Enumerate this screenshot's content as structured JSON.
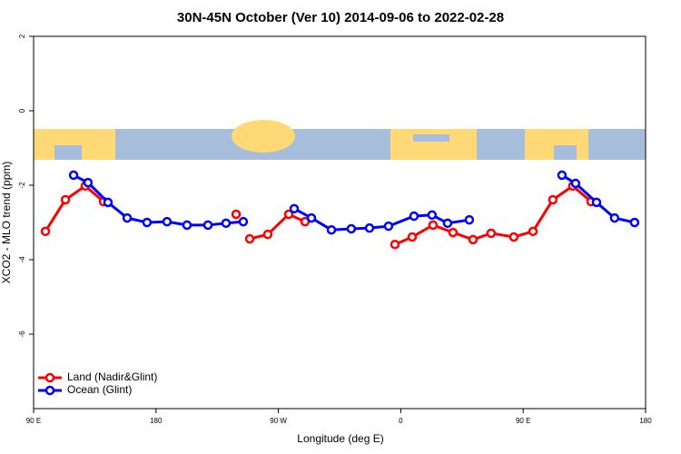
{
  "chart_data": {
    "type": "line",
    "title": "30N-45N October (Ver 10)   2014-09-06 to 2022-02-28",
    "x_label": "Longitude (deg E)",
    "y_label": "XCO2 - MLO trend (ppm)",
    "xlim": [
      90,
      540
    ],
    "ylim": [
      -8,
      2
    ],
    "xticks": [
      {
        "value": 90,
        "label": "90 E"
      },
      180,
      {
        "value": 270,
        "label": "90 W"
      },
      {
        "value": 360,
        "label": "0"
      },
      {
        "value": 450,
        "label": "90 E"
      },
      180
    ],
    "yticks": [
      2,
      0,
      -2,
      -4,
      -6
    ],
    "legend": "bottomleft",
    "series": [
      {
        "name": "Land (Nadir&Glint)",
        "color": "#ff0000",
        "x": [
          98.7,
          113.4,
          128,
          141.4,
          null,
          238.9,
          null,
          248.9,
          262.2,
          277.6,
          289.6,
          null,
          355.7,
          368.4,
          383.7,
          398.4,
          413.1,
          426.4,
          443.1,
          457.2,
          471.8,
          486.5,
          499.9
        ],
        "values": [
          -3.24,
          -2.39,
          -2.02,
          -2.44,
          null,
          -2.78,
          null,
          -3.44,
          -3.32,
          -2.78,
          -2.98,
          null,
          -3.59,
          -3.39,
          -3.07,
          -3.27,
          -3.46,
          -3.29,
          -3.39,
          -3.24,
          -2.39,
          -2.02,
          -2.44
        ]
      },
      {
        "name": "Ocean (Glint)",
        "color": "#0000ff",
        "x": [
          119.4,
          130,
          144.7,
          158.8,
          173.4,
          188.1,
          202.8,
          218.2,
          231.5,
          244.2,
          null,
          281.6,
          294.3,
          309,
          323.6,
          337,
          351,
          369.7,
          383,
          394.4,
          410.4,
          null,
          478.5,
          488.5,
          503.9,
          517.2,
          531.9
        ],
        "values": [
          -1.73,
          -1.93,
          -2.46,
          -2.88,
          -3.0,
          -2.98,
          -3.07,
          -3.07,
          -3.02,
          -2.98,
          null,
          -2.63,
          -2.88,
          -3.2,
          -3.17,
          -3.15,
          -3.1,
          -2.83,
          -2.8,
          -3.02,
          -2.93,
          null,
          -1.73,
          -1.95,
          -2.46,
          -2.88,
          -3.0
        ]
      }
    ]
  }
}
